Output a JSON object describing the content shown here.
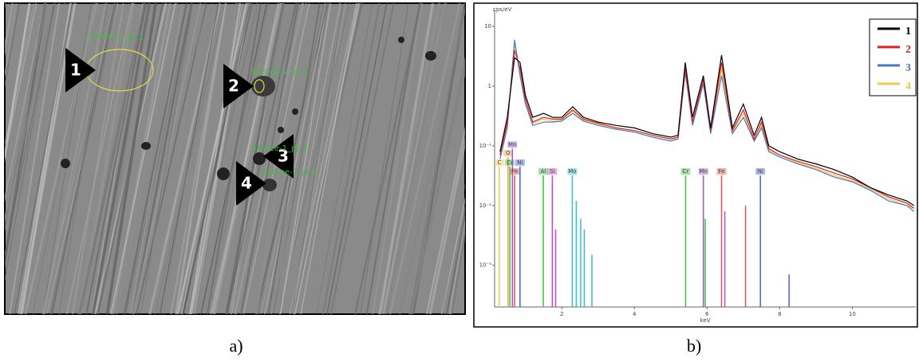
{
  "captions": [
    "a)",
    "b)"
  ],
  "points": [
    {
      "label": "1",
      "tag": "S16-ee-1_pt 1"
    },
    {
      "label": "2",
      "tag": "S16-ee-1_pt 2"
    },
    {
      "label": "3",
      "tag": "S16-ee-1_pt 3"
    },
    {
      "label": "4",
      "tag": "S16-ee-1_pt 4"
    }
  ],
  "chart_data": {
    "type": "line",
    "ylabel": "cps/eV",
    "xlabel": "keV",
    "log_y": true,
    "xlim": [
      0.15,
      11.75
    ],
    "xticks": [
      2,
      4,
      6,
      8,
      10
    ],
    "ylim": [
      0.0002,
      15
    ],
    "yticks": [
      {
        "value": 0.001,
        "label": "10⁻³"
      },
      {
        "value": 0.01,
        "label": "10⁻²"
      },
      {
        "value": 0.1,
        "label": "10⁻¹"
      },
      1,
      10
    ],
    "x": [
      0.3,
      0.5,
      0.7,
      0.85,
      1.0,
      1.2,
      1.5,
      1.75,
      2.0,
      2.3,
      2.6,
      3.0,
      3.5,
      4.0,
      4.5,
      5.0,
      5.2,
      5.4,
      5.6,
      5.9,
      6.1,
      6.4,
      6.7,
      7.0,
      7.3,
      7.5,
      7.7,
      8.0,
      8.5,
      9.0,
      9.5,
      10.0,
      10.5,
      11.0,
      11.5,
      11.7
    ],
    "series": [
      {
        "name": "1",
        "color": "#000000",
        "values": [
          0.08,
          0.3,
          3,
          2.5,
          0.7,
          0.3,
          0.35,
          0.3,
          0.3,
          0.45,
          0.3,
          0.25,
          0.22,
          0.2,
          0.16,
          0.14,
          0.15,
          2.5,
          0.3,
          1.5,
          0.2,
          3.3,
          0.2,
          0.5,
          0.15,
          0.3,
          0.1,
          0.08,
          0.06,
          0.05,
          0.04,
          0.03,
          0.02,
          0.015,
          0.012,
          0.01
        ]
      },
      {
        "name": "2",
        "color": "#e02020",
        "values": [
          0.07,
          0.25,
          4,
          2,
          0.6,
          0.25,
          0.3,
          0.28,
          0.28,
          0.4,
          0.28,
          0.24,
          0.2,
          0.18,
          0.15,
          0.13,
          0.14,
          2,
          0.25,
          1.3,
          0.18,
          2.5,
          0.18,
          0.4,
          0.13,
          0.25,
          0.09,
          0.07,
          0.055,
          0.045,
          0.035,
          0.028,
          0.02,
          0.014,
          0.011,
          0.009
        ]
      },
      {
        "name": "3",
        "color": "#4a78c0",
        "values": [
          0.06,
          0.2,
          6,
          1.5,
          0.5,
          0.22,
          0.25,
          0.25,
          0.26,
          0.35,
          0.26,
          0.22,
          0.19,
          0.17,
          0.14,
          0.12,
          0.13,
          1.7,
          0.22,
          1.1,
          0.16,
          1.5,
          0.16,
          0.3,
          0.12,
          0.2,
          0.08,
          0.065,
          0.05,
          0.04,
          0.03,
          0.025,
          0.018,
          0.012,
          0.01,
          0.008
        ]
      },
      {
        "name": "4",
        "color": "#f0c850",
        "values": [
          0.07,
          0.22,
          5,
          1.8,
          0.55,
          0.24,
          0.28,
          0.26,
          0.27,
          0.38,
          0.27,
          0.23,
          0.2,
          0.18,
          0.15,
          0.13,
          0.13,
          1.9,
          0.24,
          1.2,
          0.17,
          2,
          0.17,
          0.35,
          0.12,
          0.22,
          0.085,
          0.07,
          0.052,
          0.042,
          0.032,
          0.026,
          0.019,
          0.013,
          0.01,
          0.009
        ]
      }
    ],
    "element_lines": [
      {
        "label": "C",
        "x": 0.28,
        "top": 0.045,
        "color": "#f0c850"
      },
      {
        "label": "O",
        "x": 0.52,
        "top": 0.065,
        "color": "#f0a040"
      },
      {
        "label": "Cr",
        "x": 0.57,
        "top": 0.045,
        "color": "#3cc23c"
      },
      {
        "label": "Mn",
        "x": 0.64,
        "top": 0.09,
        "color": "#9b59d0"
      },
      {
        "label": "Fe",
        "x": 0.7,
        "top": 0.032,
        "color": "#e05050"
      },
      {
        "label": "Ni",
        "x": 0.85,
        "top": 0.045,
        "color": "#4a60d0"
      },
      {
        "label": "Al",
        "x": 1.49,
        "top": 0.032,
        "color": "#3cc23c"
      },
      {
        "label": "Si",
        "x": 1.74,
        "top": 0.032,
        "color": "#d040d0"
      },
      {
        "label": "Mo",
        "x": 2.29,
        "top": 0.032,
        "color": "#30c0d0"
      },
      {
        "label": "Cr",
        "x": 5.41,
        "top": 0.032,
        "color": "#3cc23c"
      },
      {
        "label": "Mn",
        "x": 5.9,
        "top": 0.032,
        "color": "#9b59d0"
      },
      {
        "label": "Fe",
        "x": 6.4,
        "top": 0.032,
        "color": "#e05050"
      },
      {
        "label": "Ni",
        "x": 7.47,
        "top": 0.032,
        "color": "#4a60d0"
      }
    ],
    "extra_lines": [
      {
        "x": 2.4,
        "top": 0.012,
        "color": "#30c0d0"
      },
      {
        "x": 2.52,
        "top": 0.006,
        "color": "#30c0d0"
      },
      {
        "x": 2.62,
        "top": 0.004,
        "color": "#30c0d0"
      },
      {
        "x": 2.83,
        "top": 0.0015,
        "color": "#30c0d0"
      },
      {
        "x": 1.83,
        "top": 0.004,
        "color": "#d040d0"
      },
      {
        "x": 5.95,
        "top": 0.006,
        "color": "#3cc23c"
      },
      {
        "x": 6.49,
        "top": 0.008,
        "color": "#9b59d0"
      },
      {
        "x": 7.06,
        "top": 0.01,
        "color": "#e05050"
      },
      {
        "x": 8.26,
        "top": 0.0007,
        "color": "#4a60d0"
      }
    ]
  }
}
